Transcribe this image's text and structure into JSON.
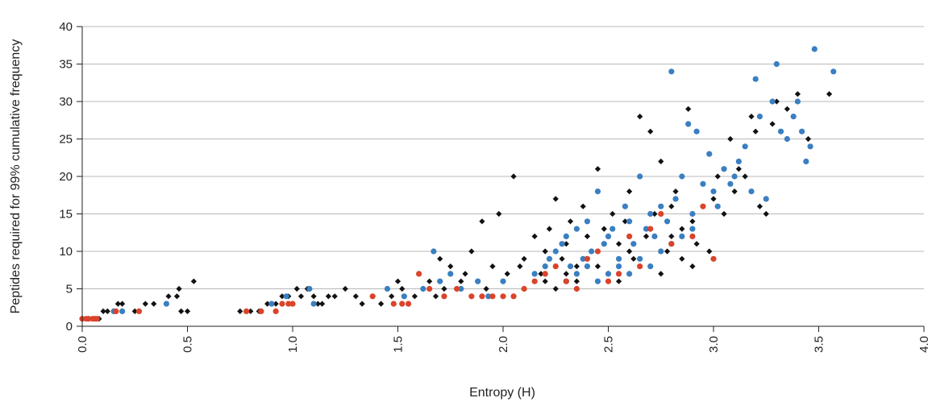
{
  "chart_data": {
    "type": "scatter",
    "xlabel": "Entropy (H)",
    "ylabel": "Peptides required for 99% cumulative frequency",
    "xlim": [
      0,
      4
    ],
    "ylim": [
      0,
      40
    ],
    "x_ticks": [
      "0.0",
      "0.5",
      "1.0",
      "1.5",
      "2.0",
      "2.5",
      "3.0",
      "3.5",
      "4.0"
    ],
    "y_ticks": [
      "0",
      "5",
      "10",
      "15",
      "20",
      "25",
      "30",
      "35",
      "40"
    ],
    "grid": "horizontal",
    "legend": "none",
    "series": [
      {
        "marker": "diamond",
        "color": "#111111",
        "points": [
          [
            0.05,
            1
          ],
          [
            0.08,
            1
          ],
          [
            0.1,
            2
          ],
          [
            0.12,
            2
          ],
          [
            0.15,
            2
          ],
          [
            0.17,
            3
          ],
          [
            0.19,
            3
          ],
          [
            0.25,
            2
          ],
          [
            0.3,
            3
          ],
          [
            0.34,
            3
          ],
          [
            0.41,
            4
          ],
          [
            0.45,
            4
          ],
          [
            0.46,
            5
          ],
          [
            0.47,
            2
          ],
          [
            0.5,
            2
          ],
          [
            0.53,
            6
          ],
          [
            0.75,
            2
          ],
          [
            0.8,
            2
          ],
          [
            0.84,
            2
          ],
          [
            0.88,
            3
          ],
          [
            0.92,
            3
          ],
          [
            0.95,
            4
          ],
          [
            0.98,
            4
          ],
          [
            1.0,
            3
          ],
          [
            1.02,
            5
          ],
          [
            1.04,
            4
          ],
          [
            1.07,
            5
          ],
          [
            1.1,
            4
          ],
          [
            1.12,
            3
          ],
          [
            1.14,
            3
          ],
          [
            1.17,
            4
          ],
          [
            1.2,
            4
          ],
          [
            1.25,
            5
          ],
          [
            1.3,
            4
          ],
          [
            1.33,
            3
          ],
          [
            1.38,
            4
          ],
          [
            1.42,
            3
          ],
          [
            1.47,
            4
          ],
          [
            1.5,
            6
          ],
          [
            1.52,
            5
          ],
          [
            1.55,
            3
          ],
          [
            1.58,
            4
          ],
          [
            1.62,
            5
          ],
          [
            1.65,
            6
          ],
          [
            1.68,
            4
          ],
          [
            1.7,
            9
          ],
          [
            1.72,
            5
          ],
          [
            1.75,
            8
          ],
          [
            1.78,
            5
          ],
          [
            1.8,
            6
          ],
          [
            1.82,
            7
          ],
          [
            1.85,
            10
          ],
          [
            1.88,
            6
          ],
          [
            1.9,
            14
          ],
          [
            1.92,
            5
          ],
          [
            1.95,
            8
          ],
          [
            1.98,
            15
          ],
          [
            2.0,
            6
          ],
          [
            2.02,
            7
          ],
          [
            2.05,
            20
          ],
          [
            2.08,
            8
          ],
          [
            2.1,
            9
          ],
          [
            2.15,
            12
          ],
          [
            2.18,
            7
          ],
          [
            2.2,
            10
          ],
          [
            2.22,
            13
          ],
          [
            2.25,
            17
          ],
          [
            2.28,
            9
          ],
          [
            2.3,
            11
          ],
          [
            2.32,
            14
          ],
          [
            2.35,
            8
          ],
          [
            2.38,
            16
          ],
          [
            2.4,
            12
          ],
          [
            2.42,
            10
          ],
          [
            2.45,
            21
          ],
          [
            2.48,
            13
          ],
          [
            2.5,
            7
          ],
          [
            2.52,
            15
          ],
          [
            2.55,
            11
          ],
          [
            2.58,
            14
          ],
          [
            2.6,
            18
          ],
          [
            2.62,
            9
          ],
          [
            2.65,
            28
          ],
          [
            2.68,
            12
          ],
          [
            2.7,
            26
          ],
          [
            2.72,
            15
          ],
          [
            2.75,
            22
          ],
          [
            2.78,
            10
          ],
          [
            2.8,
            16
          ],
          [
            2.82,
            18
          ],
          [
            2.85,
            13
          ],
          [
            2.88,
            29
          ],
          [
            2.9,
            14
          ],
          [
            2.92,
            11
          ],
          [
            2.95,
            16
          ],
          [
            2.98,
            10
          ],
          [
            3.0,
            17
          ],
          [
            3.02,
            20
          ],
          [
            3.05,
            15
          ],
          [
            3.08,
            25
          ],
          [
            3.1,
            18
          ],
          [
            3.12,
            21
          ],
          [
            3.15,
            20
          ],
          [
            3.18,
            28
          ],
          [
            3.2,
            26
          ],
          [
            3.22,
            16
          ],
          [
            3.25,
            15
          ],
          [
            3.28,
            27
          ],
          [
            3.3,
            30
          ],
          [
            3.35,
            29
          ],
          [
            3.4,
            31
          ],
          [
            3.45,
            25
          ],
          [
            3.55,
            31
          ],
          [
            2.4,
            9
          ],
          [
            2.45,
            8
          ],
          [
            2.5,
            12
          ],
          [
            2.55,
            6
          ],
          [
            2.6,
            10
          ],
          [
            2.7,
            8
          ],
          [
            2.75,
            7
          ],
          [
            2.8,
            12
          ],
          [
            2.85,
            9
          ],
          [
            2.9,
            8
          ],
          [
            2.35,
            6
          ],
          [
            2.3,
            7
          ],
          [
            2.25,
            5
          ],
          [
            2.2,
            6
          ],
          [
            2.1,
            5
          ],
          [
            2.05,
            4
          ]
        ]
      },
      {
        "marker": "circle",
        "color": "#3a7fc1",
        "points": [
          [
            0.15,
            2
          ],
          [
            0.19,
            2
          ],
          [
            0.4,
            3
          ],
          [
            0.9,
            3
          ],
          [
            0.97,
            4
          ],
          [
            1.08,
            5
          ],
          [
            1.1,
            3
          ],
          [
            1.45,
            5
          ],
          [
            1.53,
            4
          ],
          [
            1.62,
            5
          ],
          [
            1.67,
            10
          ],
          [
            1.7,
            6
          ],
          [
            1.75,
            7
          ],
          [
            1.8,
            5
          ],
          [
            1.88,
            6
          ],
          [
            1.93,
            4
          ],
          [
            2.0,
            6
          ],
          [
            2.15,
            7
          ],
          [
            2.2,
            8
          ],
          [
            2.22,
            9
          ],
          [
            2.25,
            10
          ],
          [
            2.28,
            11
          ],
          [
            2.3,
            12
          ],
          [
            2.32,
            8
          ],
          [
            2.35,
            13
          ],
          [
            2.38,
            9
          ],
          [
            2.4,
            14
          ],
          [
            2.42,
            10
          ],
          [
            2.45,
            18
          ],
          [
            2.48,
            11
          ],
          [
            2.5,
            12
          ],
          [
            2.52,
            13
          ],
          [
            2.55,
            9
          ],
          [
            2.58,
            16
          ],
          [
            2.6,
            14
          ],
          [
            2.62,
            11
          ],
          [
            2.65,
            20
          ],
          [
            2.68,
            13
          ],
          [
            2.7,
            15
          ],
          [
            2.72,
            12
          ],
          [
            2.75,
            16
          ],
          [
            2.78,
            14
          ],
          [
            2.8,
            34
          ],
          [
            2.82,
            17
          ],
          [
            2.85,
            20
          ],
          [
            2.88,
            27
          ],
          [
            2.9,
            15
          ],
          [
            2.92,
            26
          ],
          [
            2.95,
            19
          ],
          [
            2.98,
            23
          ],
          [
            3.0,
            18
          ],
          [
            3.02,
            16
          ],
          [
            3.05,
            21
          ],
          [
            3.08,
            19
          ],
          [
            3.1,
            20
          ],
          [
            3.12,
            22
          ],
          [
            3.15,
            24
          ],
          [
            3.18,
            18
          ],
          [
            3.2,
            33
          ],
          [
            3.22,
            28
          ],
          [
            3.25,
            17
          ],
          [
            3.28,
            30
          ],
          [
            3.3,
            35
          ],
          [
            3.32,
            26
          ],
          [
            3.35,
            25
          ],
          [
            3.38,
            28
          ],
          [
            3.4,
            30
          ],
          [
            3.42,
            26
          ],
          [
            3.44,
            22
          ],
          [
            3.46,
            24
          ],
          [
            3.48,
            37
          ],
          [
            3.57,
            34
          ],
          [
            2.3,
            6
          ],
          [
            2.35,
            7
          ],
          [
            2.4,
            8
          ],
          [
            2.45,
            6
          ],
          [
            2.5,
            7
          ],
          [
            2.55,
            8
          ],
          [
            2.6,
            7
          ],
          [
            2.65,
            9
          ],
          [
            2.7,
            8
          ],
          [
            2.75,
            10
          ],
          [
            2.8,
            11
          ],
          [
            2.85,
            12
          ],
          [
            2.9,
            13
          ]
        ]
      },
      {
        "marker": "circle",
        "color": "#d9442a",
        "points": [
          [
            0.0,
            1
          ],
          [
            0.02,
            1
          ],
          [
            0.03,
            1
          ],
          [
            0.05,
            1
          ],
          [
            0.06,
            1
          ],
          [
            0.07,
            1
          ],
          [
            0.16,
            2
          ],
          [
            0.27,
            2
          ],
          [
            0.78,
            2
          ],
          [
            0.85,
            2
          ],
          [
            0.92,
            2
          ],
          [
            0.95,
            3
          ],
          [
            0.98,
            3
          ],
          [
            1.0,
            3
          ],
          [
            1.38,
            4
          ],
          [
            1.48,
            3
          ],
          [
            1.52,
            3
          ],
          [
            1.55,
            3
          ],
          [
            1.6,
            7
          ],
          [
            1.65,
            5
          ],
          [
            1.72,
            4
          ],
          [
            1.78,
            5
          ],
          [
            1.85,
            4
          ],
          [
            1.9,
            4
          ],
          [
            1.95,
            4
          ],
          [
            2.0,
            4
          ],
          [
            2.05,
            4
          ],
          [
            2.1,
            5
          ],
          [
            2.15,
            6
          ],
          [
            2.2,
            7
          ],
          [
            2.25,
            8
          ],
          [
            2.3,
            6
          ],
          [
            2.35,
            5
          ],
          [
            2.4,
            9
          ],
          [
            2.45,
            10
          ],
          [
            2.5,
            6
          ],
          [
            2.55,
            7
          ],
          [
            2.6,
            12
          ],
          [
            2.65,
            8
          ],
          [
            2.7,
            13
          ],
          [
            2.75,
            15
          ],
          [
            2.8,
            11
          ],
          [
            2.9,
            12
          ],
          [
            2.95,
            16
          ],
          [
            3.0,
            9
          ]
        ]
      }
    ]
  }
}
